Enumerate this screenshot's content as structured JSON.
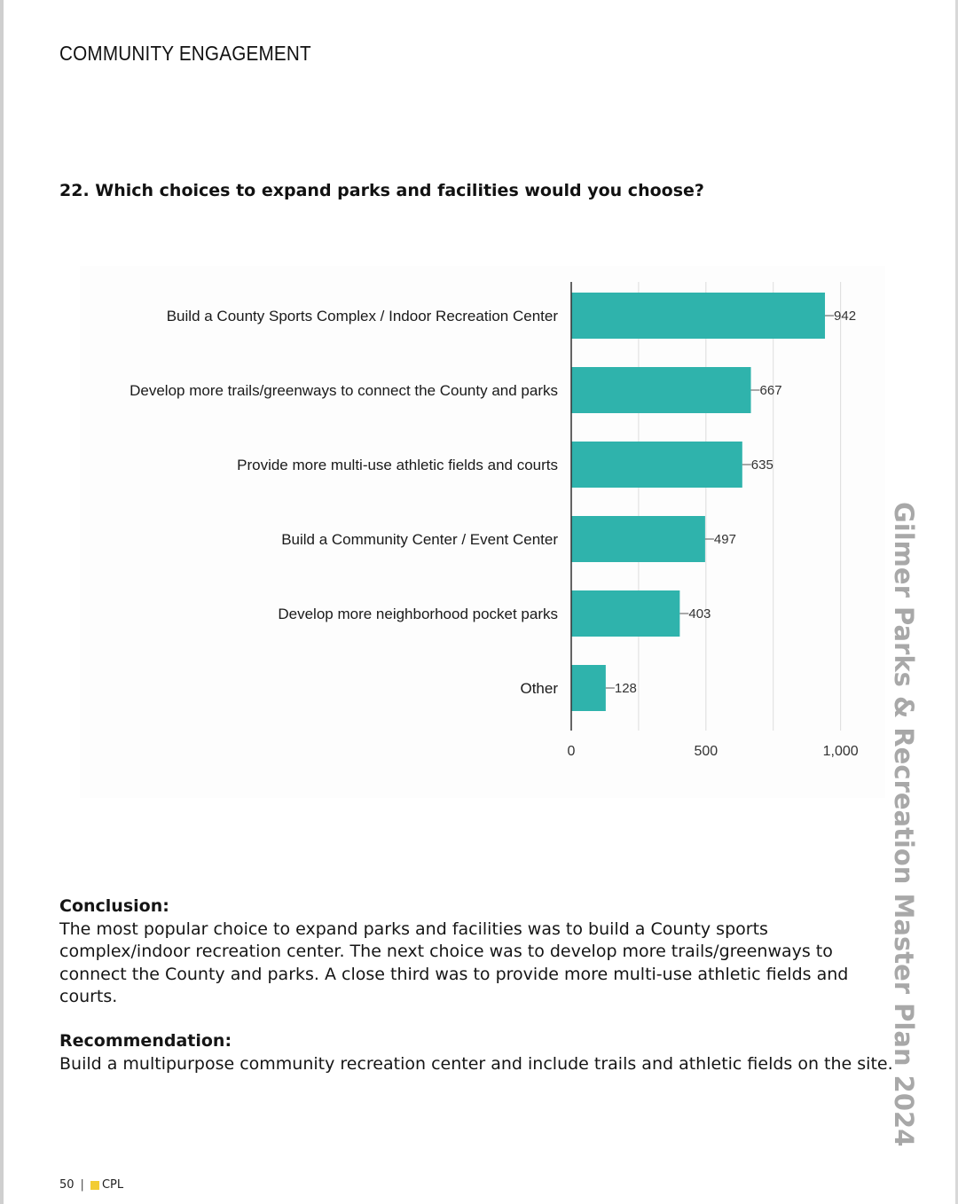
{
  "header": {
    "section": "COMMUNITY ENGAGEMENT"
  },
  "question": "22.  Which choices to expand parks and facilities would you choose?",
  "chart_data": {
    "type": "bar",
    "orientation": "horizontal",
    "categories": [
      "Build a County Sports Complex / Indoor Recreation Center",
      "Develop more trails/greenways to connect the County and parks",
      "Provide more multi-use athletic fields and courts",
      "Build a Community Center / Event Center",
      "Develop more neighborhood pocket parks",
      "Other"
    ],
    "values": [
      942,
      667,
      635,
      497,
      403,
      128
    ],
    "value_labels": [
      "942",
      "667",
      "635",
      "497",
      "403",
      "128"
    ],
    "xlim": [
      0,
      1100
    ],
    "x_ticks": [
      0,
      500,
      1000
    ],
    "x_tick_labels": [
      "0",
      "500",
      "1,000"
    ],
    "grid": true,
    "bar_color": "#2fb3ac",
    "title": "",
    "xlabel": "",
    "ylabel": ""
  },
  "conclusion": {
    "heading": "Conclusion:",
    "text": "The most popular choice to expand parks and facilities was to build a County sports complex/indoor recreation center. The next choice was to develop more trails/greenways to connect the County and parks. A close third was to provide more multi-use athletic fields and courts."
  },
  "recommendation": {
    "heading": "Recommendation:",
    "text": "Build a multipurpose community recreation center and include trails and athletic fields on the site."
  },
  "side_title": "Gilmer Parks & Recreation Master Plan 2024",
  "footer": {
    "page_number": "50",
    "separator": "|",
    "brand": "CPL",
    "brand_color": "#f2cc33"
  }
}
